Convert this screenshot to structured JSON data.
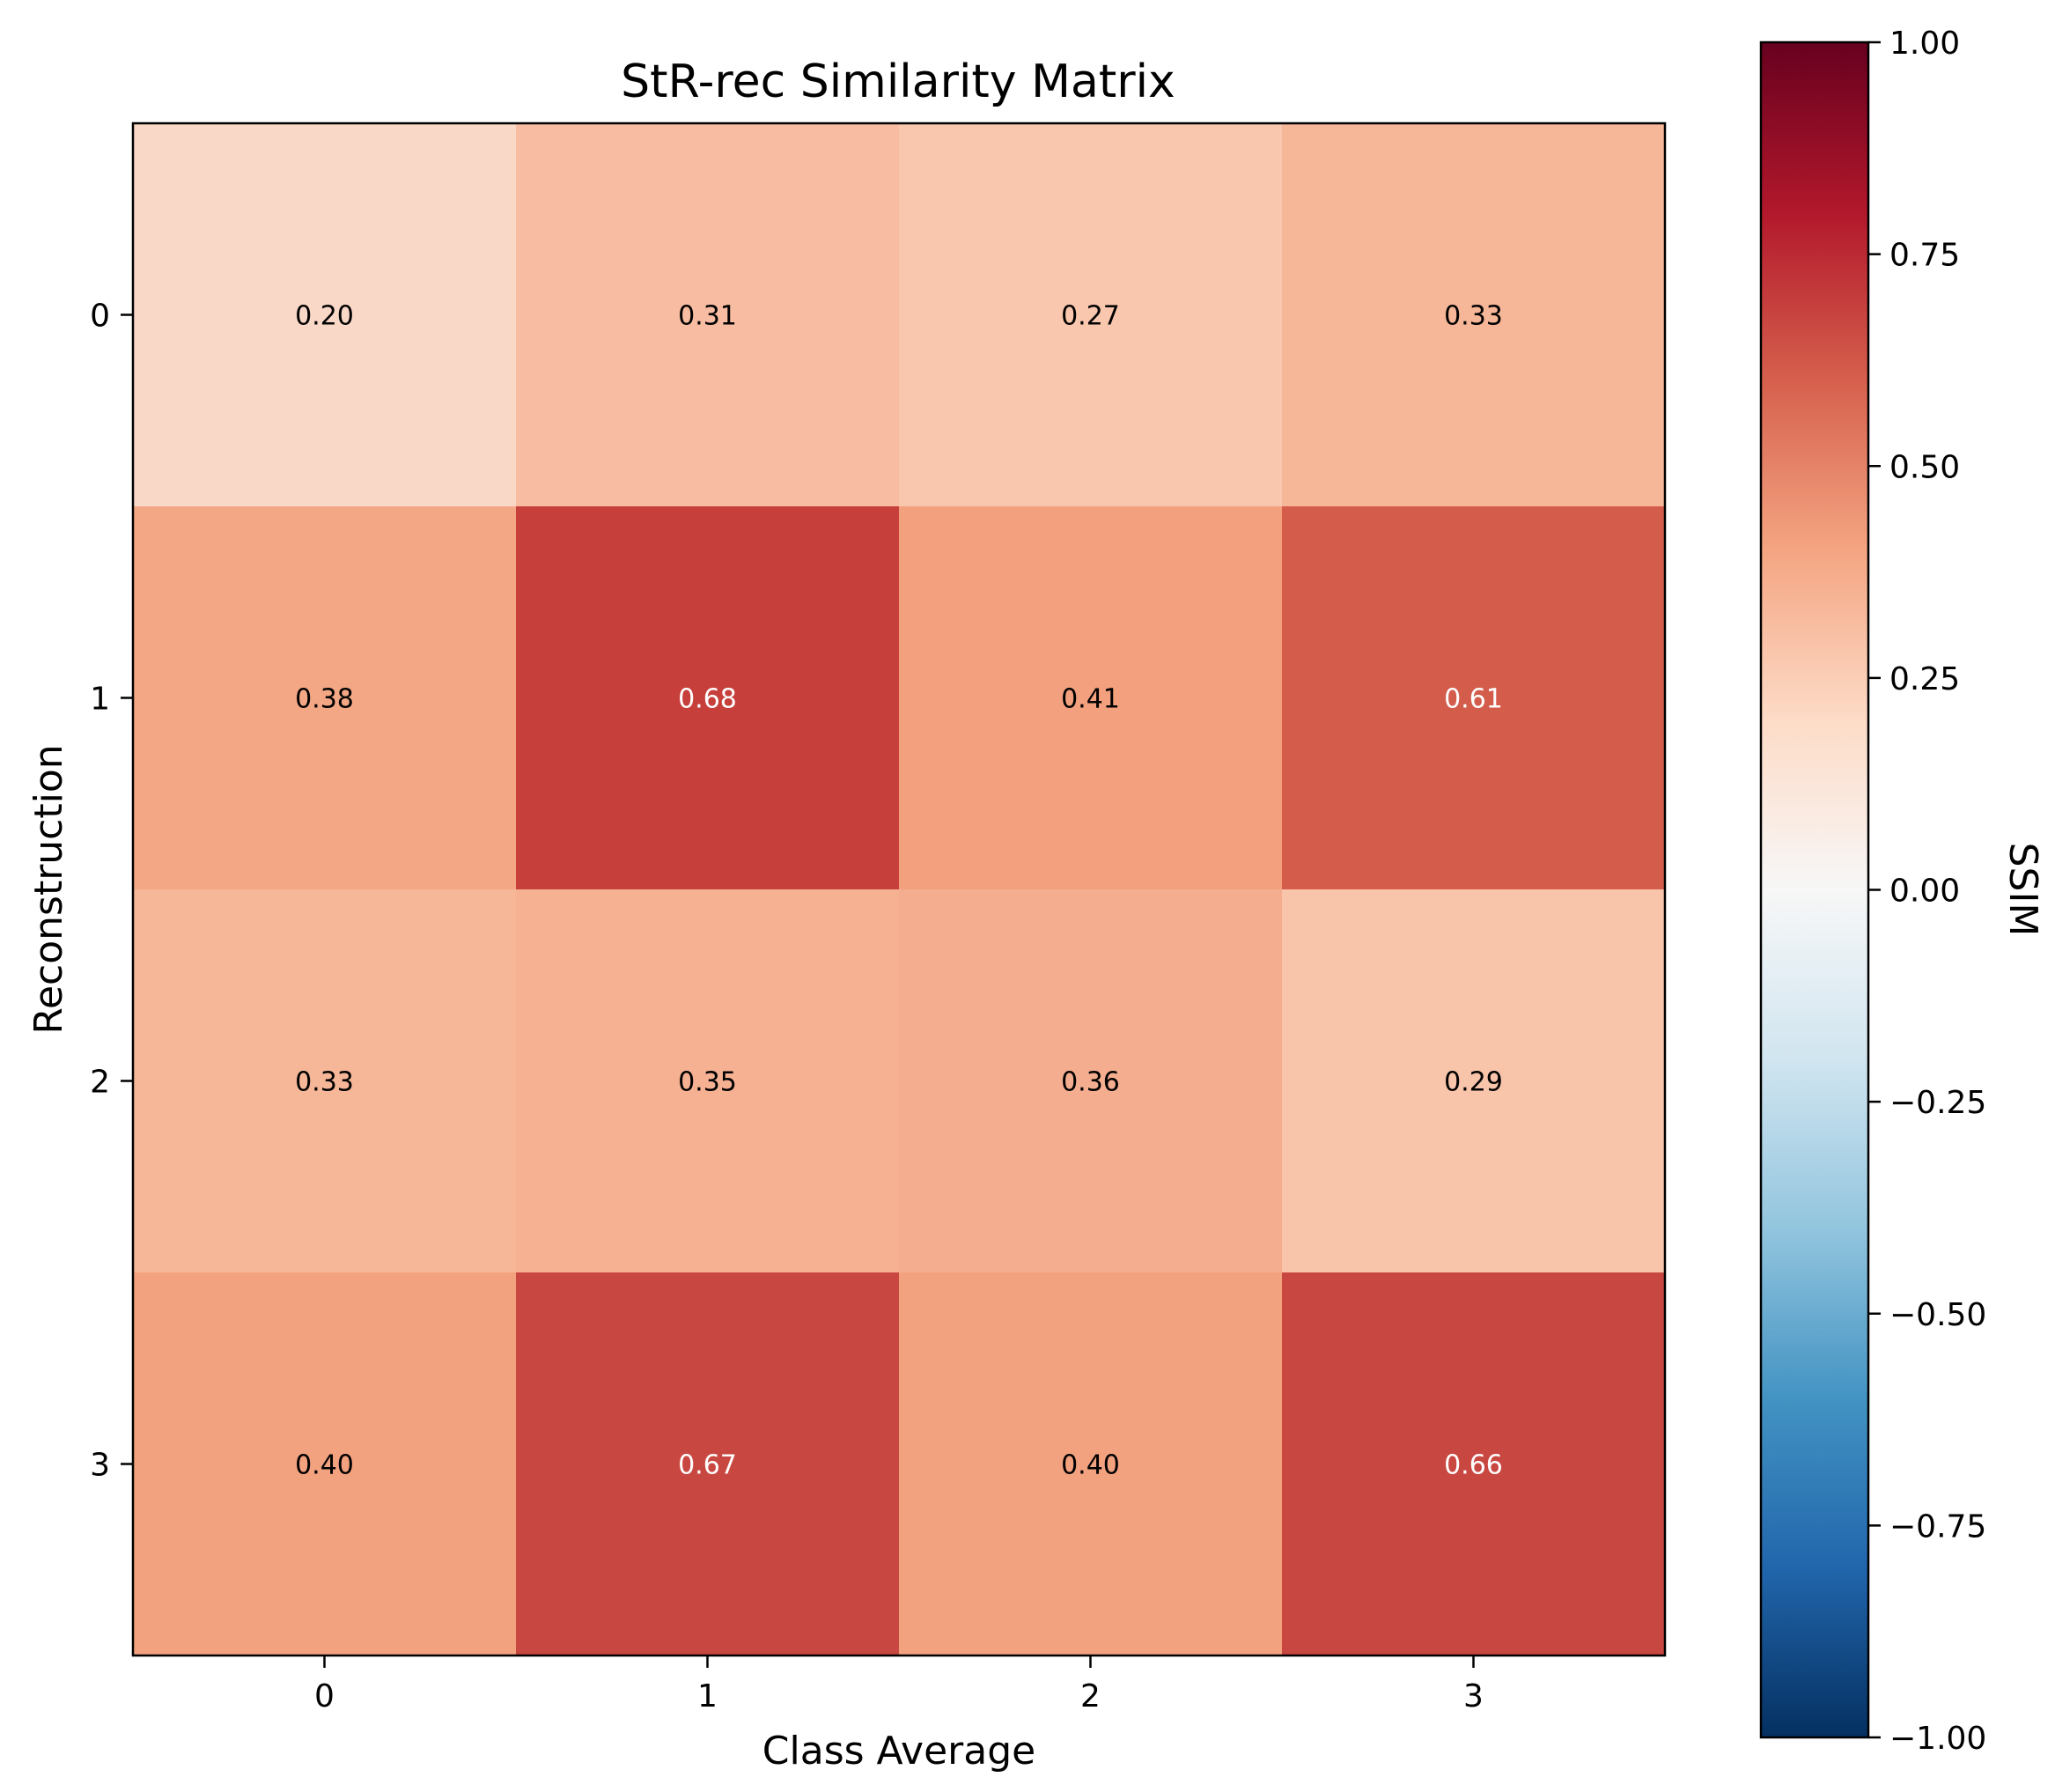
{
  "chart_data": {
    "type": "heatmap",
    "title": "StR-rec Similarity Matrix",
    "xlabel": "Class Average",
    "ylabel": "Reconstruction",
    "x_categories": [
      "0",
      "1",
      "2",
      "3"
    ],
    "y_categories": [
      "0",
      "1",
      "2",
      "3"
    ],
    "values": [
      [
        0.2,
        0.31,
        0.27,
        0.33
      ],
      [
        0.38,
        0.68,
        0.41,
        0.61
      ],
      [
        0.33,
        0.35,
        0.36,
        0.29
      ],
      [
        0.4,
        0.67,
        0.4,
        0.66
      ]
    ],
    "cell_labels": [
      [
        "0.20",
        "0.31",
        "0.27",
        "0.33"
      ],
      [
        "0.38",
        "0.68",
        "0.41",
        "0.61"
      ],
      [
        "0.33",
        "0.35",
        "0.36",
        "0.29"
      ],
      [
        "0.40",
        "0.67",
        "0.40",
        "0.66"
      ]
    ],
    "colorbar": {
      "label": "SSIM",
      "colormap": "RdBu_r",
      "vmin": -1.0,
      "vmax": 1.0,
      "ticks": [
        1.0,
        0.75,
        0.5,
        0.25,
        0.0,
        -0.25,
        -0.5,
        -0.75,
        -1.0
      ],
      "tick_labels": [
        "1.00",
        "0.75",
        "0.50",
        "0.25",
        "0.00",
        "−0.25",
        "−0.50",
        "−0.75",
        "−1.00"
      ]
    },
    "cell_colors": [
      [
        "#fad8c7",
        "#f7bca1",
        "#f8c7ad",
        "#f6b698"
      ],
      [
        "#f4a785",
        "#c73f3b",
        "#f2a07e",
        "#d45c4b"
      ],
      [
        "#f6b698",
        "#f6b193",
        "#f4ad8e",
        "#f8c4aa"
      ],
      [
        "#f3a27f",
        "#c94741",
        "#f3a27f",
        "#c94741"
      ]
    ],
    "colorbar_stops": [
      "#053061",
      "#2166ac",
      "#4393c3",
      "#92c5de",
      "#d1e5f0",
      "#f7f7f7",
      "#fddbc7",
      "#f4a582",
      "#d6604d",
      "#b2182b",
      "#67001f"
    ]
  }
}
